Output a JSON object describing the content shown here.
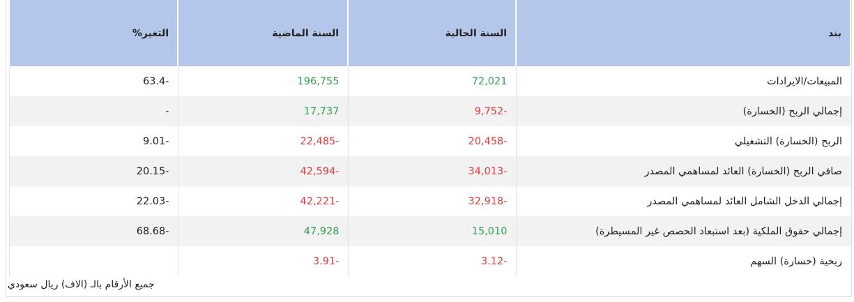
{
  "table": {
    "headers": [
      "بند",
      "السنة الحالية",
      "السنة الماضية",
      "التغير%"
    ],
    "rows": [
      [
        "المبيعات/الايرادات",
        "72,021",
        "196,755",
        "63.4-"
      ],
      [
        "إجمالي الربح (الخسارة)",
        "9,752-",
        "17,737",
        "-"
      ],
      [
        "الربح (الخسارة) التشغيلي",
        "20,458-",
        "22,485-",
        "9.01-"
      ],
      [
        "صافي الربح (الخسارة) العائد لمساهمي المصدر",
        "34,013-",
        "42,594-",
        "20.15-"
      ],
      [
        "إجمالي الدخل الشامل العائد لمساهمي المصدر",
        "32,918-",
        "42,221-",
        "22.03-"
      ],
      [
        "إجمالي حقوق الملكية (بعد استبعاد الحصص غير المسيطرة)",
        "15,010",
        "47,928",
        "68.68-"
      ],
      [
        "ربحية (خسارة) السهم",
        "3.12-",
        "3.91-",
        ""
      ]
    ]
  },
  "footnote": "جميع الأرقام بالـ (الاف) ريال سعودي"
}
